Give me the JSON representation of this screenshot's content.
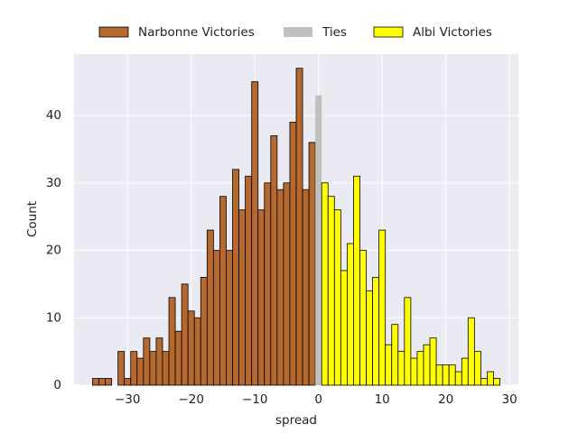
{
  "chart_data": {
    "type": "histogram",
    "xlabel": "spread",
    "ylabel": "Count",
    "xlim": [
      -38.4,
      31.4
    ],
    "ylim": [
      0,
      49.1
    ],
    "xticks": [
      {
        "value": -30,
        "label": "−30"
      },
      {
        "value": -20,
        "label": "−20"
      },
      {
        "value": -10,
        "label": "−10"
      },
      0,
      10,
      20,
      30
    ],
    "yticks": [
      0,
      10,
      20,
      30,
      40
    ],
    "grid": true,
    "legend": "top",
    "series": [
      {
        "name": "Narbonne Victories",
        "color": "#b5692f",
        "edgecolor": "#000000",
        "bins": [
          -35.5,
          -34.5,
          -33.5,
          -32.5,
          -31.5,
          -30.5,
          -29.5,
          -28.5,
          -27.5,
          -26.5,
          -25.5,
          -24.5,
          -23.5,
          -22.5,
          -21.5,
          -20.5,
          -19.5,
          -18.5,
          -17.5,
          -16.5,
          -15.5,
          -14.5,
          -13.5,
          -12.5,
          -11.5,
          -10.5,
          -9.5,
          -8.5,
          -7.5,
          -6.5,
          -5.5,
          -4.5,
          -3.5,
          -2.5,
          -1.5,
          -0.5
        ],
        "values": [
          1,
          1,
          1,
          0,
          5,
          1,
          5,
          4,
          7,
          5,
          7,
          5,
          13,
          8,
          15,
          11,
          10,
          16,
          23,
          20,
          28,
          20,
          32,
          26,
          31,
          45,
          26,
          30,
          37,
          29,
          30,
          39,
          47,
          29,
          36
        ]
      },
      {
        "name": "Ties",
        "color": "#c0c0c0",
        "bins": [
          -0.5,
          0.5
        ],
        "values": [
          43
        ]
      },
      {
        "name": "Albi Victories",
        "color": "#ffff00",
        "edgecolor": "#000000",
        "bins": [
          0.5,
          1.5,
          2.5,
          3.5,
          4.5,
          5.5,
          6.5,
          7.5,
          8.5,
          9.5,
          10.5,
          11.5,
          12.5,
          13.5,
          14.5,
          15.5,
          16.5,
          17.5,
          18.5,
          19.5,
          20.5,
          21.5,
          22.5,
          23.5,
          24.5,
          25.5,
          26.5,
          27.5,
          28.5
        ],
        "values": [
          30,
          28,
          26,
          17,
          21,
          31,
          20,
          14,
          16,
          23,
          6,
          9,
          5,
          13,
          4,
          5,
          6,
          7,
          3,
          3,
          3,
          2,
          4,
          10,
          5,
          1,
          2,
          1
        ]
      }
    ]
  }
}
